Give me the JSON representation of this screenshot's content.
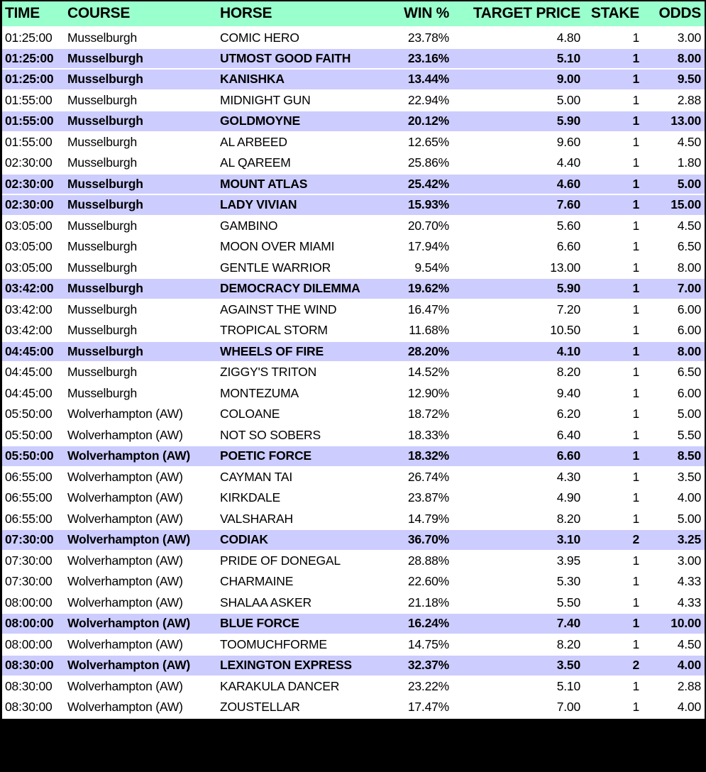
{
  "colors": {
    "header_bg": "#99ffcc",
    "highlight_row_bg": "#ccccff",
    "row_bg": "#ffffff",
    "frame_bg": "#000000",
    "text": "#000000",
    "separator": "#ffffff"
  },
  "table": {
    "columns": [
      {
        "key": "time",
        "label": "TIME",
        "align": "left"
      },
      {
        "key": "course",
        "label": "COURSE",
        "align": "left"
      },
      {
        "key": "horse",
        "label": "HORSE",
        "align": "left"
      },
      {
        "key": "win_pct",
        "label": "WIN %",
        "align": "right"
      },
      {
        "key": "target_price",
        "label": "TARGET PRICE",
        "align": "right"
      },
      {
        "key": "stake",
        "label": "STAKE",
        "align": "right"
      },
      {
        "key": "odds",
        "label": "ODDS",
        "align": "right"
      }
    ],
    "rows": [
      {
        "time": "01:25:00",
        "course": "Musselburgh",
        "horse": "COMIC HERO",
        "win_pct": "23.78%",
        "target_price": "4.80",
        "stake": "1",
        "odds": "3.00",
        "highlighted": false
      },
      {
        "time": "01:25:00",
        "course": "Musselburgh",
        "horse": "UTMOST GOOD FAITH",
        "win_pct": "23.16%",
        "target_price": "5.10",
        "stake": "1",
        "odds": "8.00",
        "highlighted": true
      },
      {
        "time": "01:25:00",
        "course": "Musselburgh",
        "horse": "KANISHKA",
        "win_pct": "13.44%",
        "target_price": "9.00",
        "stake": "1",
        "odds": "9.50",
        "highlighted": true
      },
      {
        "time": "01:55:00",
        "course": "Musselburgh",
        "horse": "MIDNIGHT GUN",
        "win_pct": "22.94%",
        "target_price": "5.00",
        "stake": "1",
        "odds": "2.88",
        "highlighted": false
      },
      {
        "time": "01:55:00",
        "course": "Musselburgh",
        "horse": "GOLDMOYNE",
        "win_pct": "20.12%",
        "target_price": "5.90",
        "stake": "1",
        "odds": "13.00",
        "highlighted": true
      },
      {
        "time": "01:55:00",
        "course": "Musselburgh",
        "horse": "AL ARBEED",
        "win_pct": "12.65%",
        "target_price": "9.60",
        "stake": "1",
        "odds": "4.50",
        "highlighted": false
      },
      {
        "time": "02:30:00",
        "course": "Musselburgh",
        "horse": "AL QAREEM",
        "win_pct": "25.86%",
        "target_price": "4.40",
        "stake": "1",
        "odds": "1.80",
        "highlighted": false
      },
      {
        "time": "02:30:00",
        "course": "Musselburgh",
        "horse": "MOUNT ATLAS",
        "win_pct": "25.42%",
        "target_price": "4.60",
        "stake": "1",
        "odds": "5.00",
        "highlighted": true
      },
      {
        "time": "02:30:00",
        "course": "Musselburgh",
        "horse": "LADY VIVIAN",
        "win_pct": "15.93%",
        "target_price": "7.60",
        "stake": "1",
        "odds": "15.00",
        "highlighted": true
      },
      {
        "time": "03:05:00",
        "course": "Musselburgh",
        "horse": "GAMBINO",
        "win_pct": "20.70%",
        "target_price": "5.60",
        "stake": "1",
        "odds": "4.50",
        "highlighted": false
      },
      {
        "time": "03:05:00",
        "course": "Musselburgh",
        "horse": "MOON OVER MIAMI",
        "win_pct": "17.94%",
        "target_price": "6.60",
        "stake": "1",
        "odds": "6.50",
        "highlighted": false
      },
      {
        "time": "03:05:00",
        "course": "Musselburgh",
        "horse": "GENTLE WARRIOR",
        "win_pct": "9.54%",
        "target_price": "13.00",
        "stake": "1",
        "odds": "8.00",
        "highlighted": false
      },
      {
        "time": "03:42:00",
        "course": "Musselburgh",
        "horse": "DEMOCRACY DILEMMA",
        "win_pct": "19.62%",
        "target_price": "5.90",
        "stake": "1",
        "odds": "7.00",
        "highlighted": true
      },
      {
        "time": "03:42:00",
        "course": "Musselburgh",
        "horse": "AGAINST THE WIND",
        "win_pct": "16.47%",
        "target_price": "7.20",
        "stake": "1",
        "odds": "6.00",
        "highlighted": false
      },
      {
        "time": "03:42:00",
        "course": "Musselburgh",
        "horse": "TROPICAL STORM",
        "win_pct": "11.68%",
        "target_price": "10.50",
        "stake": "1",
        "odds": "6.00",
        "highlighted": false
      },
      {
        "time": "04:45:00",
        "course": "Musselburgh",
        "horse": "WHEELS OF FIRE",
        "win_pct": "28.20%",
        "target_price": "4.10",
        "stake": "1",
        "odds": "8.00",
        "highlighted": true
      },
      {
        "time": "04:45:00",
        "course": "Musselburgh",
        "horse": "ZIGGY'S TRITON",
        "win_pct": "14.52%",
        "target_price": "8.20",
        "stake": "1",
        "odds": "6.50",
        "highlighted": false
      },
      {
        "time": "04:45:00",
        "course": "Musselburgh",
        "horse": "MONTEZUMA",
        "win_pct": "12.90%",
        "target_price": "9.40",
        "stake": "1",
        "odds": "6.00",
        "highlighted": false
      },
      {
        "time": "05:50:00",
        "course": "Wolverhampton (AW)",
        "horse": "COLOANE",
        "win_pct": "18.72%",
        "target_price": "6.20",
        "stake": "1",
        "odds": "5.00",
        "highlighted": false
      },
      {
        "time": "05:50:00",
        "course": "Wolverhampton (AW)",
        "horse": "NOT SO SOBERS",
        "win_pct": "18.33%",
        "target_price": "6.40",
        "stake": "1",
        "odds": "5.50",
        "highlighted": false
      },
      {
        "time": "05:50:00",
        "course": "Wolverhampton (AW)",
        "horse": "POETIC FORCE",
        "win_pct": "18.32%",
        "target_price": "6.60",
        "stake": "1",
        "odds": "8.50",
        "highlighted": true
      },
      {
        "time": "06:55:00",
        "course": "Wolverhampton (AW)",
        "horse": "CAYMAN TAI",
        "win_pct": "26.74%",
        "target_price": "4.30",
        "stake": "1",
        "odds": "3.50",
        "highlighted": false
      },
      {
        "time": "06:55:00",
        "course": "Wolverhampton (AW)",
        "horse": "KIRKDALE",
        "win_pct": "23.87%",
        "target_price": "4.90",
        "stake": "1",
        "odds": "4.00",
        "highlighted": false
      },
      {
        "time": "06:55:00",
        "course": "Wolverhampton (AW)",
        "horse": "VALSHARAH",
        "win_pct": "14.79%",
        "target_price": "8.20",
        "stake": "1",
        "odds": "5.00",
        "highlighted": false
      },
      {
        "time": "07:30:00",
        "course": "Wolverhampton (AW)",
        "horse": "CODIAK",
        "win_pct": "36.70%",
        "target_price": "3.10",
        "stake": "2",
        "odds": "3.25",
        "highlighted": true
      },
      {
        "time": "07:30:00",
        "course": "Wolverhampton (AW)",
        "horse": "PRIDE OF DONEGAL",
        "win_pct": "28.88%",
        "target_price": "3.95",
        "stake": "1",
        "odds": "3.00",
        "highlighted": false
      },
      {
        "time": "07:30:00",
        "course": "Wolverhampton (AW)",
        "horse": "CHARMAINE",
        "win_pct": "22.60%",
        "target_price": "5.30",
        "stake": "1",
        "odds": "4.33",
        "highlighted": false
      },
      {
        "time": "08:00:00",
        "course": "Wolverhampton (AW)",
        "horse": "SHALAA ASKER",
        "win_pct": "21.18%",
        "target_price": "5.50",
        "stake": "1",
        "odds": "4.33",
        "highlighted": false
      },
      {
        "time": "08:00:00",
        "course": "Wolverhampton (AW)",
        "horse": "BLUE FORCE",
        "win_pct": "16.24%",
        "target_price": "7.40",
        "stake": "1",
        "odds": "10.00",
        "highlighted": true
      },
      {
        "time": "08:00:00",
        "course": "Wolverhampton (AW)",
        "horse": "TOOMUCHFORME",
        "win_pct": "14.75%",
        "target_price": "8.20",
        "stake": "1",
        "odds": "4.50",
        "highlighted": false
      },
      {
        "time": "08:30:00",
        "course": "Wolverhampton (AW)",
        "horse": "LEXINGTON EXPRESS",
        "win_pct": "32.37%",
        "target_price": "3.50",
        "stake": "2",
        "odds": "4.00",
        "highlighted": true
      },
      {
        "time": "08:30:00",
        "course": "Wolverhampton (AW)",
        "horse": "KARAKULA DANCER",
        "win_pct": "23.22%",
        "target_price": "5.10",
        "stake": "1",
        "odds": "2.88",
        "highlighted": false
      },
      {
        "time": "08:30:00",
        "course": "Wolverhampton (AW)",
        "horse": "ZOUSTELLAR",
        "win_pct": "17.47%",
        "target_price": "7.00",
        "stake": "1",
        "odds": "4.00",
        "highlighted": false
      }
    ]
  }
}
